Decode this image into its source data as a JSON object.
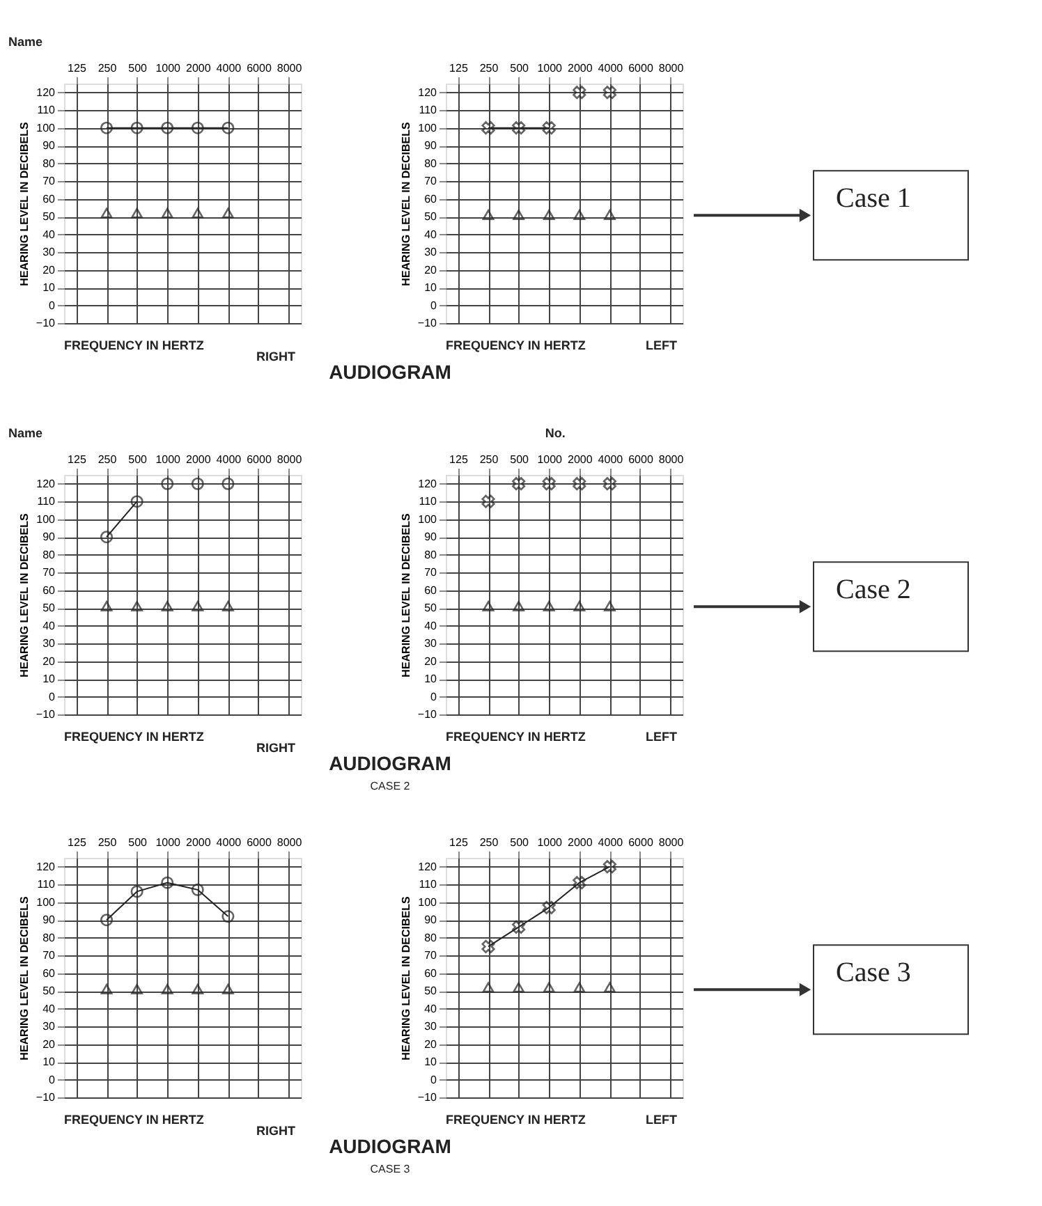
{
  "chart_data": [
    {
      "type": "line",
      "categories": [
        "125",
        "250",
        "500",
        "1000",
        "2000",
        "4000",
        "6000",
        "8000"
      ],
      "xlabel": "FREQUENCY IN HERTZ",
      "ylabel": "HEARING LEVEL IN DECIBELS",
      "ylim": [
        -10,
        125
      ],
      "yticks": [
        -10,
        0,
        10,
        20,
        30,
        40,
        50,
        60,
        70,
        80,
        90,
        100,
        110,
        120
      ],
      "grid": true,
      "annotations": [
        "RIGHT",
        "Name"
      ],
      "series": [
        {
          "marker": "circle",
          "color": "#222222",
          "values": [
            null,
            100,
            100,
            100,
            100,
            100,
            null,
            null
          ]
        },
        {
          "type": "scatter",
          "marker": "triangle",
          "color": "#222222",
          "values": [
            null,
            52,
            52,
            52,
            52,
            52,
            null,
            null
          ]
        }
      ]
    },
    {
      "type": "line",
      "categories": [
        "125",
        "250",
        "500",
        "1000",
        "2000",
        "4000",
        "6000",
        "8000"
      ],
      "xlabel": "FREQUENCY IN HERTZ",
      "ylabel": "HEARING LEVEL IN DECIBELS",
      "ylim": [
        -10,
        125
      ],
      "yticks": [
        -10,
        0,
        10,
        20,
        30,
        40,
        50,
        60,
        70,
        80,
        90,
        100,
        110,
        120
      ],
      "grid": true,
      "annotations": [
        "LEFT",
        "AUDIOGRAM",
        "Case 1"
      ],
      "series": [
        {
          "marker": "cross",
          "color": "#222222",
          "values": [
            null,
            100,
            100,
            100,
            null,
            null,
            null,
            null
          ]
        },
        {
          "type": "scatter",
          "marker": "cross",
          "color": "#222222",
          "values": [
            null,
            null,
            null,
            null,
            120,
            120,
            null,
            null
          ]
        },
        {
          "type": "scatter",
          "marker": "triangle",
          "color": "#222222",
          "values": [
            null,
            51,
            51,
            51,
            51,
            51,
            null,
            null
          ]
        }
      ]
    },
    {
      "type": "line",
      "categories": [
        "125",
        "250",
        "500",
        "1000",
        "2000",
        "4000",
        "6000",
        "8000"
      ],
      "xlabel": "FREQUENCY IN HERTZ",
      "ylabel": "HEARING LEVEL IN DECIBELS",
      "ylim": [
        -10,
        125
      ],
      "yticks": [
        -10,
        0,
        10,
        20,
        30,
        40,
        50,
        60,
        70,
        80,
        90,
        100,
        110,
        120
      ],
      "grid": true,
      "annotations": [
        "RIGHT",
        "Name"
      ],
      "series": [
        {
          "marker": "circle",
          "color": "#222222",
          "values": [
            null,
            90,
            110,
            null,
            null,
            null,
            null,
            null
          ]
        },
        {
          "type": "scatter",
          "marker": "circle",
          "color": "#222222",
          "values": [
            null,
            null,
            null,
            120,
            120,
            120,
            null,
            null
          ]
        },
        {
          "type": "scatter",
          "marker": "triangle",
          "color": "#222222",
          "values": [
            null,
            51,
            51,
            51,
            51,
            51,
            null,
            null
          ]
        }
      ]
    },
    {
      "type": "line",
      "categories": [
        "125",
        "250",
        "500",
        "1000",
        "2000",
        "4000",
        "6000",
        "8000"
      ],
      "xlabel": "FREQUENCY IN HERTZ",
      "ylabel": "HEARING LEVEL IN DECIBELS",
      "ylim": [
        -10,
        125
      ],
      "yticks": [
        -10,
        0,
        10,
        20,
        30,
        40,
        50,
        60,
        70,
        80,
        90,
        100,
        110,
        120
      ],
      "grid": true,
      "annotations": [
        "LEFT",
        "AUDIOGRAM",
        "Case 2",
        "CASE 2",
        "No."
      ],
      "series": [
        {
          "type": "scatter",
          "marker": "cross",
          "color": "#222222",
          "values": [
            null,
            110,
            120,
            120,
            120,
            120,
            null,
            null
          ]
        },
        {
          "type": "scatter",
          "marker": "triangle",
          "color": "#222222",
          "values": [
            null,
            51,
            51,
            51,
            51,
            51,
            null,
            null
          ]
        }
      ]
    },
    {
      "type": "line",
      "categories": [
        "125",
        "250",
        "500",
        "1000",
        "2000",
        "4000",
        "6000",
        "8000"
      ],
      "xlabel": "FREQUENCY IN HERTZ",
      "ylabel": "HEARING LEVEL IN DECIBELS",
      "ylim": [
        -10,
        125
      ],
      "yticks": [
        -10,
        0,
        10,
        20,
        30,
        40,
        50,
        60,
        70,
        80,
        90,
        100,
        110,
        120
      ],
      "grid": true,
      "annotations": [
        "RIGHT"
      ],
      "series": [
        {
          "marker": "circle",
          "color": "#222222",
          "values": [
            null,
            90,
            106,
            111,
            107,
            92,
            null,
            null
          ]
        },
        {
          "type": "scatter",
          "marker": "triangle",
          "color": "#222222",
          "values": [
            null,
            51,
            51,
            51,
            51,
            51,
            null,
            null
          ]
        }
      ]
    },
    {
      "type": "line",
      "categories": [
        "125",
        "250",
        "500",
        "1000",
        "2000",
        "4000",
        "6000",
        "8000"
      ],
      "xlabel": "FREQUENCY IN HERTZ",
      "ylabel": "HEARING LEVEL IN DECIBELS",
      "ylim": [
        -10,
        125
      ],
      "yticks": [
        -10,
        0,
        10,
        20,
        30,
        40,
        50,
        60,
        70,
        80,
        90,
        100,
        110,
        120
      ],
      "grid": true,
      "annotations": [
        "LEFT",
        "AUDIOGRAM",
        "Case 3",
        "CASE 3"
      ],
      "series": [
        {
          "marker": "cross",
          "color": "#222222",
          "values": [
            null,
            75,
            86,
            97,
            111,
            120,
            null,
            null
          ]
        },
        {
          "type": "scatter",
          "marker": "triangle",
          "color": "#222222",
          "values": [
            null,
            52,
            52,
            52,
            52,
            52,
            null,
            null
          ]
        }
      ]
    }
  ]
}
